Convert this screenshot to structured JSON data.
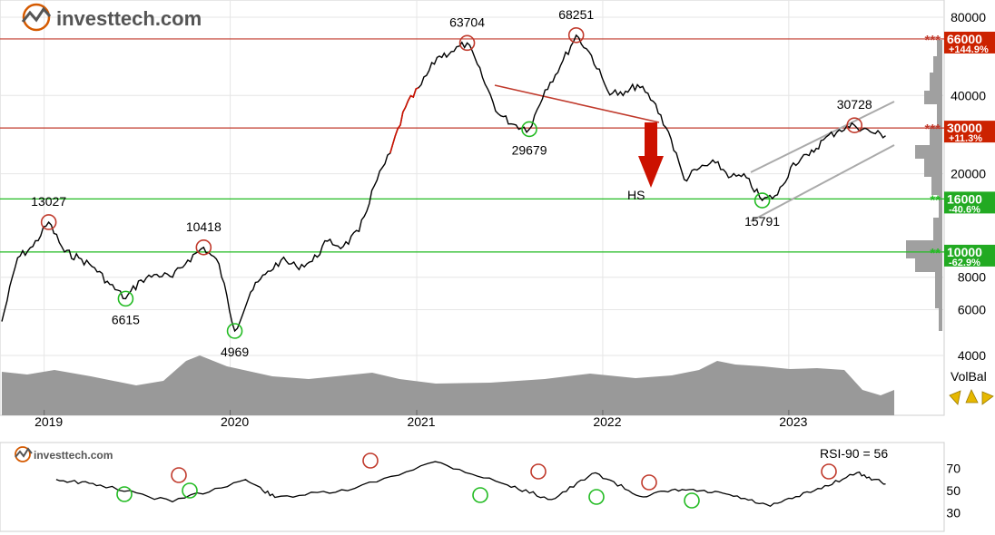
{
  "brand": {
    "name": "investtech.com"
  },
  "colors": {
    "resistance": "#c0392b",
    "support": "#22bb22",
    "price_line": "#000000",
    "volume_fill": "#999999",
    "trend_channel": "#aaaaaa",
    "arrow": "#cc1100",
    "badge_red": "#cc2200",
    "badge_green": "#22aa22"
  },
  "chart_data": [
    {
      "type": "line",
      "title": "",
      "scale": "log",
      "ylim": [
        4000,
        80000
      ],
      "y_ticks": [
        "80000",
        "40000",
        "20000",
        "8000",
        "6000",
        "4000"
      ],
      "x_tick_labels": [
        "2019",
        "2020",
        "2021",
        "2022",
        "2023"
      ],
      "series": [
        {
          "price_points": [
            [
              "2018-10",
              5400
            ],
            [
              "2018-11",
              9500
            ],
            [
              "2018-12",
              10500
            ],
            [
              "2019-01",
              13027
            ],
            [
              "2019-02",
              10000
            ],
            [
              "2019-03",
              9500
            ],
            [
              "2019-04",
              8700
            ],
            [
              "2019-05",
              7500
            ],
            [
              "2019-06",
              6615
            ],
            [
              "2019-07",
              7800
            ],
            [
              "2019-08",
              8200
            ],
            [
              "2019-09",
              8000
            ],
            [
              "2019-10",
              9300
            ],
            [
              "2019-11",
              10418
            ],
            [
              "2019-12",
              9000
            ],
            [
              "2020-01",
              4969
            ],
            [
              "2020-02",
              7000
            ],
            [
              "2020-03",
              8200
            ],
            [
              "2020-04",
              9300
            ],
            [
              "2020-05",
              8800
            ],
            [
              "2020-06",
              9200
            ],
            [
              "2020-07",
              11000
            ],
            [
              "2020-08",
              10500
            ],
            [
              "2020-09",
              12000
            ],
            [
              "2020-10",
              18000
            ],
            [
              "2020-11",
              24000
            ],
            [
              "2020-12",
              36000
            ],
            [
              "2021-01",
              44000
            ],
            [
              "2021-02",
              56000
            ],
            [
              "2021-03",
              59000
            ],
            [
              "2021-04",
              63704
            ],
            [
              "2021-05",
              47000
            ],
            [
              "2021-06",
              34000
            ],
            [
              "2021-07",
              31000
            ],
            [
              "2021-08",
              29679
            ],
            [
              "2021-09",
              42000
            ],
            [
              "2021-10",
              52000
            ],
            [
              "2021-11",
              68251
            ],
            [
              "2021-12",
              57000
            ],
            [
              "2022-01",
              42000
            ],
            [
              "2022-02",
              40000
            ],
            [
              "2022-03",
              44000
            ],
            [
              "2022-04",
              38000
            ],
            [
              "2022-05",
              29000
            ],
            [
              "2022-06",
              19000
            ],
            [
              "2022-07",
              21000
            ],
            [
              "2022-08",
              22000
            ],
            [
              "2022-09",
              19500
            ],
            [
              "2022-10",
              19300
            ],
            [
              "2022-11",
              15791
            ],
            [
              "2022-12",
              16600
            ],
            [
              "2023-01",
              22000
            ],
            [
              "2023-02",
              23500
            ],
            [
              "2023-03",
              27000
            ],
            [
              "2023-04",
              29500
            ],
            [
              "2023-05",
              30728
            ],
            [
              "2023-06",
              29000
            ],
            [
              "2023-07",
              28000
            ]
          ]
        }
      ],
      "horizontal_levels": [
        {
          "value": 66000,
          "label": "66000",
          "change": "+144.9%",
          "stars": "***",
          "kind": "resistance"
        },
        {
          "value": 30000,
          "label": "30000",
          "change": "+11.3%",
          "stars": "***",
          "kind": "resistance"
        },
        {
          "value": 16000,
          "label": "16000",
          "change": "-40.6%",
          "stars": "**",
          "kind": "support"
        },
        {
          "value": 10000,
          "label": "10000",
          "change": "-62.9%",
          "stars": "**",
          "kind": "support"
        }
      ],
      "annotations": [
        {
          "text": "13027",
          "date": "2019-01",
          "value": 13027,
          "kind": "top"
        },
        {
          "text": "6615",
          "date": "2019-06",
          "value": 6615,
          "kind": "bottom"
        },
        {
          "text": "10418",
          "date": "2019-11",
          "value": 10418,
          "kind": "top"
        },
        {
          "text": "4969",
          "date": "2020-01",
          "value": 4969,
          "kind": "bottom"
        },
        {
          "text": "63704",
          "date": "2021-04",
          "value": 63704,
          "kind": "top"
        },
        {
          "text": "29679",
          "date": "2021-08",
          "value": 29679,
          "kind": "bottom"
        },
        {
          "text": "68251",
          "date": "2021-11",
          "value": 68251,
          "kind": "top"
        },
        {
          "text": "15791",
          "date": "2022-11",
          "value": 15791,
          "kind": "bottom"
        },
        {
          "text": "30728",
          "date": "2023-05",
          "value": 30728,
          "kind": "top"
        }
      ],
      "pattern_label": "HS",
      "volume_label": "VolBal"
    },
    {
      "type": "line",
      "title": "",
      "indicator_label": "RSI-90 = 56",
      "y_ticks": [
        "70",
        "50",
        "30"
      ],
      "ylim": [
        20,
        85
      ],
      "series": [
        {
          "rsi_points": [
            [
              "2018-10",
              60
            ],
            [
              "2019-01",
              55
            ],
            [
              "2019-06",
              40
            ],
            [
              "2019-11",
              60
            ],
            [
              "2020-01",
              44
            ],
            [
              "2020-06",
              50
            ],
            [
              "2020-12",
              76
            ],
            [
              "2021-05",
              55
            ],
            [
              "2021-08",
              42
            ],
            [
              "2021-11",
              66
            ],
            [
              "2022-02",
              45
            ],
            [
              "2022-05",
              51
            ],
            [
              "2022-08",
              47
            ],
            [
              "2022-11",
              36
            ],
            [
              "2023-02",
              50
            ],
            [
              "2023-05",
              66
            ],
            [
              "2023-07",
              56
            ]
          ]
        }
      ]
    }
  ]
}
